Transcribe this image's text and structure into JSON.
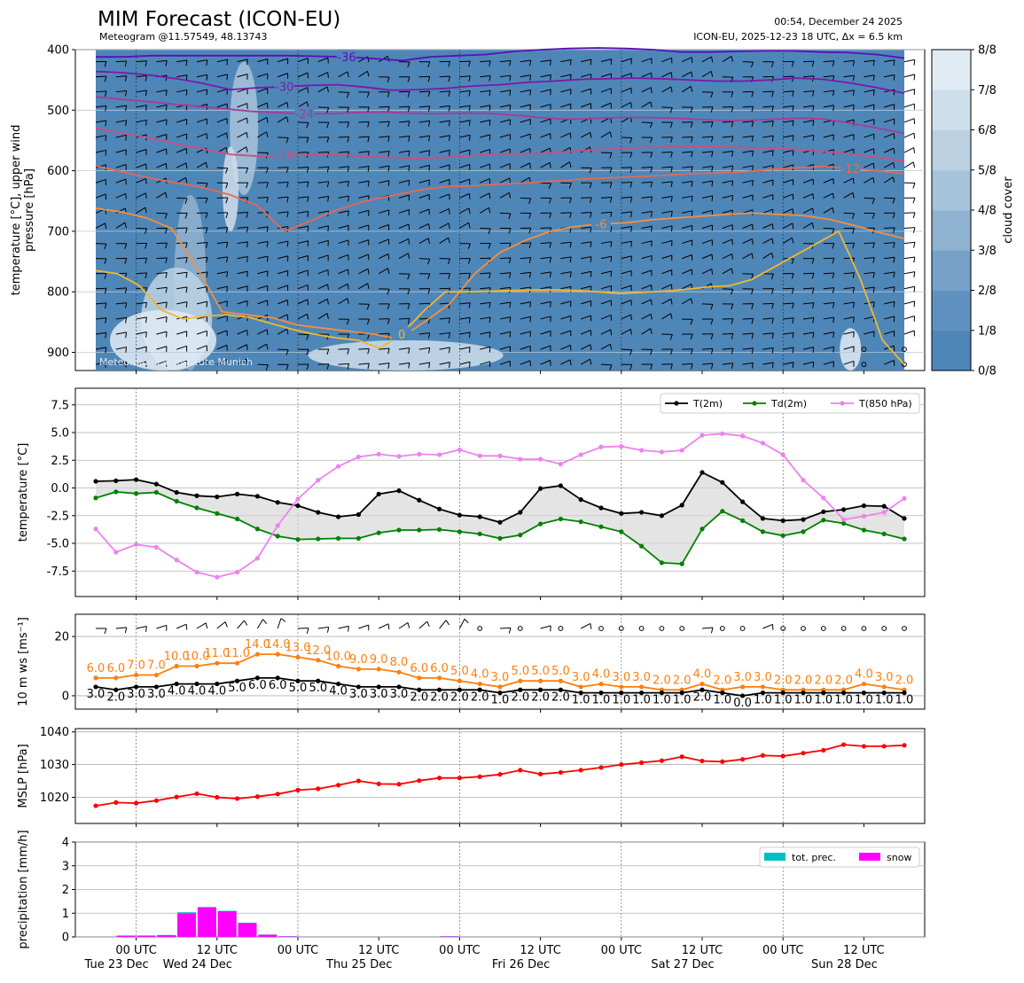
{
  "header": {
    "title": "MIM Forecast (ICON-EU)",
    "subtitle": "Meteogram @11.57549, 48.13743",
    "timestamp": "00:54, December 24 2025",
    "run_info": "ICON-EU, 2025-12-23 18 UTC, Δx = 6.5 km",
    "watermark": "Meteorological Institute Munich"
  },
  "time_axis": {
    "tick_hours": [
      6,
      18,
      30,
      42,
      54,
      66,
      78,
      90,
      102,
      114,
      126,
      138,
      150
    ],
    "tick_labels": [
      [
        "00 UTC",
        "Tue 23 Dec"
      ],
      [
        "12 UTC",
        "Wed 24 Dec"
      ],
      [
        "00 UTC",
        ""
      ],
      [
        "12 UTC",
        "Thu 25 Dec"
      ],
      [
        "00 UTC",
        ""
      ],
      [
        "12 UTC",
        "Fri 26 Dec"
      ],
      [
        "00 UTC",
        ""
      ],
      [
        "12 UTC",
        "Sat 27 Dec"
      ],
      [
        "00 UTC",
        ""
      ],
      [
        "12 UTC",
        "Sun 28 Dec"
      ]
    ],
    "labeled_hours": [
      6,
      18,
      30,
      42,
      54,
      66,
      78,
      90,
      102,
      114
    ],
    "xlim": [
      0,
      126
    ]
  },
  "chart_data": [
    {
      "type": "heatmap",
      "name": "cross-section",
      "ylabel": "temperature [°C], upper wind\npressure [hPa]",
      "ylim": [
        930,
        400
      ],
      "yticks": [
        400,
        500,
        600,
        700,
        800,
        900
      ],
      "colorbar": {
        "label": "cloud cover",
        "ticks": [
          "0/8",
          "1/8",
          "2/8",
          "3/8",
          "4/8",
          "5/8",
          "6/8",
          "7/8",
          "8/8"
        ],
        "colors": [
          "#4f86b8",
          "#5f91c0",
          "#76a1c8",
          "#8fb2d0",
          "#a7c3d9",
          "#bcd2e3",
          "#cfdeeb",
          "#e1ebf4",
          "#f2f7fb"
        ]
      },
      "isotherm_labels": [
        "-36",
        "-30",
        "-24",
        "-18",
        "-12",
        "-6",
        "0"
      ],
      "isotherms": [
        {
          "label": "-36",
          "color": "#5a0fb5",
          "label_x": 36,
          "p": [
            412,
            412,
            410,
            410,
            410,
            410,
            410,
            410,
            411,
            412,
            415,
            418,
            412,
            410,
            408,
            403,
            400,
            398,
            397,
            398,
            400,
            404,
            404,
            403,
            402,
            402,
            404,
            405,
            408,
            414
          ]
        },
        {
          "label": "-30",
          "color": "#7a1aa8",
          "label_x": 26,
          "p": [
            436,
            438,
            442,
            448,
            456,
            466,
            463,
            461,
            459,
            458,
            462,
            467,
            466,
            464,
            460,
            458,
            454,
            452,
            449,
            448,
            447,
            448,
            450,
            452,
            452,
            450,
            447,
            449,
            455,
            463,
            472
          ]
        },
        {
          "label": "-24",
          "color": "#a73a98",
          "label_x": 32,
          "p": [
            478,
            482,
            486,
            490,
            494,
            498,
            502,
            504,
            506,
            506,
            504,
            503,
            505,
            506,
            505,
            505,
            508,
            512,
            515,
            514,
            512,
            512,
            513,
            515,
            517,
            517,
            515,
            513,
            515,
            522,
            530,
            538
          ]
        },
        {
          "label": "-18",
          "color": "#cc4f7e",
          "label_x": 28,
          "p": [
            530,
            538,
            546,
            556,
            564,
            573,
            576,
            575,
            574,
            574,
            576,
            578,
            580,
            578,
            575,
            572,
            572,
            570,
            567,
            564,
            562,
            561,
            560,
            560,
            562,
            563,
            565,
            568,
            572,
            578,
            584
          ]
        },
        {
          "label": "-12",
          "color": "#e46a55",
          "label_x": 112,
          "p": [
            592,
            602,
            612,
            620,
            628,
            640,
            658,
            700,
            682,
            664,
            650,
            641,
            632,
            626,
            625,
            622,
            620,
            617,
            614,
            612,
            610,
            608,
            605,
            604,
            602,
            598,
            595,
            593,
            596,
            600,
            605
          ]
        },
        {
          "label": "-6",
          "color": "#f39040",
          "label_x": 74,
          "p": [
            662,
            668,
            678,
            695,
            760,
            833,
            838,
            843,
            855,
            860,
            865,
            870,
            878,
            850,
            820,
            770,
            735,
            715,
            700,
            692,
            688,
            686,
            681,
            678,
            675,
            672,
            670,
            672,
            674,
            680,
            690,
            702,
            712
          ]
        },
        {
          "label": "0",
          "color": "#f2b82e",
          "label_x": 46,
          "p": [
            765,
            770,
            790,
            830,
            845,
            840,
            838,
            842,
            852,
            862,
            870,
            876,
            880,
            893,
            870,
            832,
            800,
            800,
            799,
            798,
            797,
            797,
            798,
            800,
            803,
            801,
            799,
            796,
            792,
            790,
            780,
            760,
            740,
            720,
            700,
            780,
            880,
            920
          ]
        }
      ]
    },
    {
      "type": "line",
      "name": "temperature",
      "ylabel": "temperature [°C]",
      "ylim": [
        -9.8,
        9.0
      ],
      "yticks": [
        -7.5,
        -5.0,
        -2.5,
        0.0,
        2.5,
        5.0,
        7.5
      ],
      "x_start_hour": 0,
      "x_step_hours": 3,
      "series": [
        {
          "name": "T(2m)",
          "color": "#000000",
          "values": [
            0.6,
            0.65,
            0.75,
            0.35,
            -0.4,
            -0.7,
            -0.8,
            -0.55,
            -0.75,
            -1.3,
            -1.6,
            -2.2,
            -2.6,
            -2.4,
            -0.55,
            -0.25,
            -1.1,
            -1.9,
            -2.45,
            -2.6,
            -3.1,
            -2.2,
            -0.05,
            0.2,
            -1.05,
            -1.8,
            -2.3,
            -2.2,
            -2.5,
            -1.55,
            1.4,
            0.5,
            -1.25,
            -2.75,
            -2.95,
            -2.85,
            -2.15,
            -1.95,
            -1.6,
            -1.65,
            -2.75
          ]
        },
        {
          "name": "Td(2m)",
          "color": "#008000",
          "values": [
            -0.9,
            -0.35,
            -0.5,
            -0.4,
            -1.2,
            -1.8,
            -2.3,
            -2.8,
            -3.7,
            -4.35,
            -4.65,
            -4.6,
            -4.55,
            -4.55,
            -4.05,
            -3.8,
            -3.8,
            -3.75,
            -3.95,
            -4.15,
            -4.55,
            -4.25,
            -3.25,
            -2.8,
            -3.05,
            -3.5,
            -3.95,
            -5.25,
            -6.75,
            -6.85,
            -3.7,
            -2.1,
            -2.95,
            -3.95,
            -4.3,
            -3.95,
            -2.9,
            -3.2,
            -3.8,
            -4.15,
            -4.6
          ]
        },
        {
          "name": "T(850 hPa)",
          "color": "#ee82ee",
          "values": [
            -3.7,
            -5.8,
            -5.1,
            -5.35,
            -6.5,
            -7.6,
            -8.05,
            -7.6,
            -6.35,
            -3.4,
            -1.0,
            0.7,
            1.95,
            2.8,
            3.05,
            2.85,
            3.05,
            3.0,
            3.45,
            2.9,
            2.9,
            2.6,
            2.6,
            2.15,
            3.0,
            3.7,
            3.75,
            3.4,
            3.25,
            3.4,
            4.75,
            4.9,
            4.7,
            4.05,
            3.0,
            0.7,
            -0.9,
            -2.85,
            -2.55,
            -2.2,
            -0.95
          ]
        }
      ]
    },
    {
      "type": "line",
      "name": "wind",
      "ylabel": "10 m ws [ms⁻¹]",
      "ylim": [
        -4.5,
        27.5
      ],
      "yticks": [
        0,
        20
      ],
      "x_start_hour": 0,
      "x_step_hours": 3,
      "series": [
        {
          "name": "gust",
          "color": "#ff7f0e",
          "values": [
            6.0,
            6.0,
            7.0,
            7.0,
            10.0,
            10.0,
            11.0,
            11.0,
            14.0,
            14.0,
            13.0,
            12.0,
            10.0,
            9.0,
            9.0,
            8.0,
            6.0,
            6.0,
            5.0,
            4.0,
            3.0,
            5.0,
            5.0,
            5.0,
            3.0,
            4.0,
            3.0,
            3.0,
            2.0,
            2.0,
            4.0,
            2.0,
            3.0,
            3.0,
            2.0,
            2.0,
            2.0,
            2.0,
            4.0,
            3.0,
            2.0
          ],
          "labels": [
            "6.0",
            "6.0",
            "7.0",
            "7.0",
            "10.0",
            "10.0",
            "11.0",
            "11.0",
            "14.0",
            "14.0",
            "13.0",
            "12.0",
            "10.0",
            "9.0",
            "9.0",
            "8.0",
            "6.0",
            "6.0",
            "5.0",
            "4.0",
            "3.0",
            "5.0",
            "5.0",
            "5.0",
            "3.0",
            "4.0",
            "3.0",
            "3.0",
            "2.0",
            "2.0",
            "4.0",
            "2.0",
            "3.0",
            "3.0",
            "2.0",
            "2.0",
            "2.0",
            "2.0",
            "4.0",
            "3.0",
            "2.0"
          ]
        },
        {
          "name": "ws",
          "color": "#000000",
          "values": [
            3.0,
            2.0,
            3.0,
            3.0,
            4.0,
            4.0,
            4.0,
            5.0,
            6.0,
            6.0,
            5.0,
            5.0,
            4.0,
            3.0,
            3.0,
            3.0,
            2.0,
            2.0,
            2.0,
            2.0,
            1.0,
            2.0,
            2.0,
            2.0,
            1.0,
            1.0,
            1.0,
            1.0,
            1.0,
            1.0,
            2.0,
            1.0,
            0.0,
            1.0,
            1.0,
            1.0,
            1.0,
            1.0,
            1.0,
            1.0,
            1.0
          ],
          "labels": [
            "3.0",
            "2.0",
            "3.0",
            "3.0",
            "4.0",
            "4.0",
            "4.0",
            "5.0",
            "6.0",
            "6.0",
            "5.0",
            "5.0",
            "4.0",
            "3.0",
            "3.0",
            "3.0",
            "2.0",
            "2.0",
            "2.0",
            "2.0",
            "1.0",
            "2.0",
            "2.0",
            "2.0",
            "1.0",
            "1.0",
            "1.0",
            "1.0",
            "1.0",
            "1.0",
            "2.0",
            "1.0",
            "0.0",
            "1.0",
            "1.0",
            "1.0",
            "1.0",
            "1.0",
            "1.0",
            "1.0",
            "1.0"
          ]
        }
      ]
    },
    {
      "type": "line",
      "name": "pressure",
      "ylabel": "MSLP [hPa]",
      "ylim": [
        1012,
        1041
      ],
      "yticks": [
        1020,
        1030,
        1040
      ],
      "x_start_hour": 0,
      "x_step_hours": 3,
      "series": [
        {
          "name": "MSLP",
          "color": "#ff0000",
          "values": [
            1017.4,
            1018.4,
            1018.2,
            1019.0,
            1020.1,
            1021.1,
            1020.0,
            1019.6,
            1020.2,
            1021.0,
            1022.2,
            1022.6,
            1023.7,
            1025.0,
            1024.1,
            1024.0,
            1025.1,
            1025.9,
            1025.9,
            1026.3,
            1027.0,
            1028.3,
            1027.1,
            1027.6,
            1028.3,
            1029.1,
            1030.0,
            1030.6,
            1031.2,
            1032.4,
            1031.1,
            1030.9,
            1031.6,
            1032.8,
            1032.6,
            1033.5,
            1034.4,
            1036.1,
            1035.6,
            1035.6,
            1035.9
          ]
        }
      ]
    },
    {
      "type": "bar",
      "name": "precipitation",
      "ylabel": "precipitation [mm/h]",
      "ylim": [
        0,
        4
      ],
      "yticks": [
        0,
        1,
        2,
        3,
        4
      ],
      "x_start_hour": 0,
      "x_step_hours": 3,
      "series": [
        {
          "name": "tot. prec.",
          "color": "#00bfbf",
          "values": [
            0,
            0.06,
            0.06,
            0.08,
            1.04,
            1.26,
            1.1,
            0.6,
            0.1,
            0.03,
            0,
            0,
            0,
            0,
            0,
            0,
            0,
            0.03,
            0,
            0,
            0,
            0,
            0,
            0,
            0,
            0,
            0,
            0,
            0,
            0,
            0,
            0,
            0,
            0,
            0,
            0,
            0,
            0,
            0,
            0
          ]
        },
        {
          "name": "snow",
          "color": "#ff00ff",
          "values": [
            0,
            0.04,
            0.05,
            0.07,
            0.98,
            1.24,
            1.08,
            0.58,
            0.09,
            0.02,
            0,
            0,
            0,
            0,
            0,
            0,
            0,
            0.02,
            0,
            0,
            0,
            0,
            0,
            0,
            0,
            0,
            0,
            0,
            0,
            0,
            0,
            0,
            0,
            0,
            0,
            0,
            0,
            0,
            0,
            0
          ]
        }
      ]
    }
  ]
}
